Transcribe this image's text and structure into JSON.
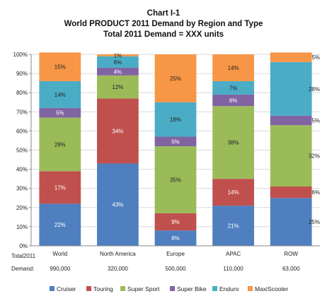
{
  "chart_data": {
    "type": "bar",
    "stacked": true,
    "percent": true,
    "title": "Chart I-1",
    "subtitle": "World PRODUCT 2011 Demand by Region and Type",
    "subtitle2": "Total 2011 Demand = XXX units",
    "categories": [
      "World",
      "North America",
      "Europe",
      "APAC",
      "ROW"
    ],
    "demand_label_1": "Total2011",
    "demand_label_2": "Demand:",
    "demand": [
      "990,000",
      "320,000",
      "500,000",
      "110,000",
      "63,000"
    ],
    "y_ticks": [
      "0%",
      "10%",
      "20%",
      "30%",
      "40%",
      "50%",
      "60%",
      "70%",
      "80%",
      "90%",
      "100%"
    ],
    "ylim": [
      0,
      100
    ],
    "legend_position": "bottom",
    "series": [
      {
        "name": "Cruiser",
        "color": "#4f7fbf",
        "values": [
          22,
          43,
          8,
          21,
          25
        ],
        "labels": [
          "22%",
          "43%",
          "8%",
          "21%",
          "25%"
        ]
      },
      {
        "name": "Touring",
        "color": "#c0504d",
        "values": [
          17,
          34,
          9,
          14,
          6
        ],
        "labels": [
          "17%",
          "34%",
          "9%",
          "14%",
          "6%"
        ]
      },
      {
        "name": "Super Sport",
        "color": "#9bbb59",
        "values": [
          28,
          12,
          35,
          38,
          32
        ],
        "labels": [
          "28%",
          "12%",
          "35%",
          "38%",
          "32%"
        ]
      },
      {
        "name": "Super Bike",
        "color": "#8064a2",
        "values": [
          5,
          4,
          5,
          6,
          5
        ],
        "labels": [
          "5%",
          "4%",
          "5%",
          "6%",
          "5%"
        ]
      },
      {
        "name": "Enduro",
        "color": "#4bacc6",
        "values": [
          14,
          6,
          18,
          7,
          28
        ],
        "labels": [
          "14%",
          "6%",
          "18%",
          "7%",
          "28%"
        ]
      },
      {
        "name": "MaxiScooter",
        "color": "#f79646",
        "values": [
          15,
          1,
          25,
          14,
          5
        ],
        "labels": [
          "15%",
          "1%",
          "25%",
          "14%",
          "5%"
        ]
      }
    ],
    "outside_label_categories": [
      "ROW"
    ]
  }
}
